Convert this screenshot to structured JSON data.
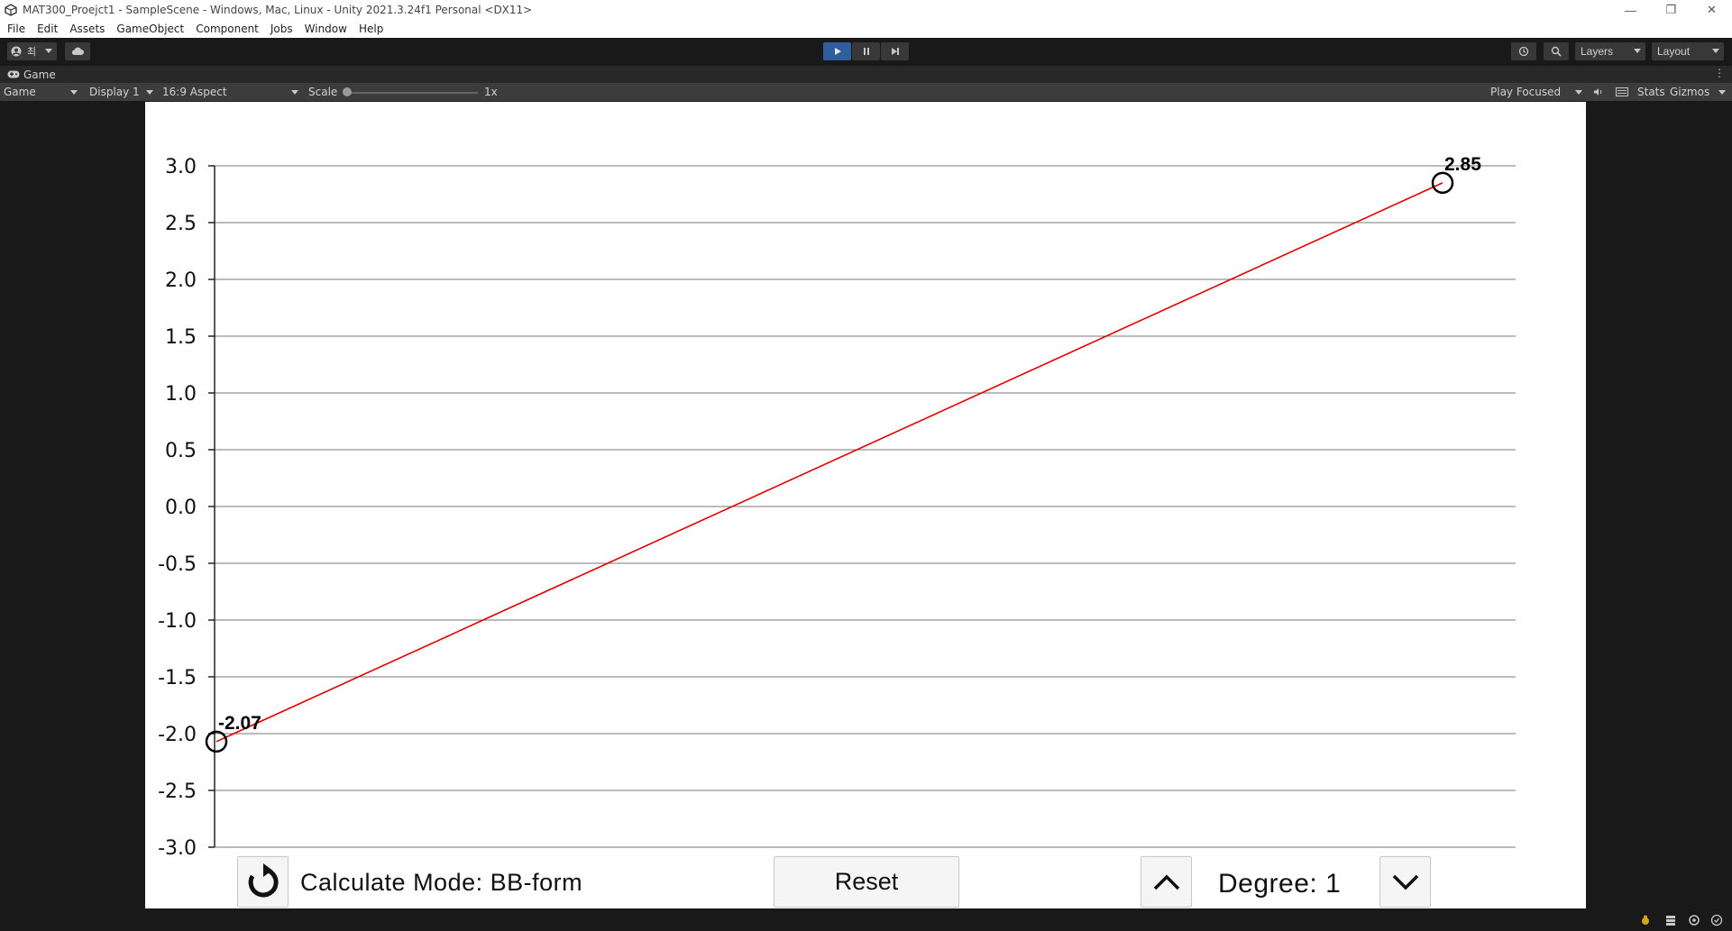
{
  "window": {
    "title": "MAT300_Proejct1 - SampleScene - Windows, Mac, Linux - Unity 2021.3.24f1 Personal <DX11>",
    "controls": {
      "minimize": "—",
      "restore": "❐",
      "close": "✕"
    }
  },
  "menu": [
    "File",
    "Edit",
    "Assets",
    "GameObject",
    "Component",
    "Jobs",
    "Window",
    "Help"
  ],
  "toolbar": {
    "account_label": "최",
    "play_state": "playing",
    "layers_label": "Layers",
    "layout_label": "Layout"
  },
  "game_tab": {
    "label": "Game"
  },
  "game_options": {
    "view": "Game",
    "display": "Display 1",
    "aspect": "16:9 Aspect",
    "scale_label": "Scale",
    "scale_value": "1x",
    "play_mode": "Play Focused",
    "stats": "Stats",
    "gizmos": "Gizmos"
  },
  "chart_data": {
    "type": "line",
    "title": "",
    "xlabel": "",
    "ylabel": "",
    "ylim": [
      -3.0,
      3.0
    ],
    "y_ticks": [
      "3.0",
      "2.5",
      "2.0",
      "1.5",
      "1.0",
      "0.5",
      "0.0",
      "-0.5",
      "-1.0",
      "-1.5",
      "-2.0",
      "-2.5",
      "-3.0"
    ],
    "grid": true,
    "series": [
      {
        "color": "#e00000",
        "x": [
          0,
          1
        ],
        "y": [
          -2.07,
          2.85
        ]
      }
    ],
    "control_points": [
      {
        "x": 0,
        "y": -2.07,
        "label": "-2.07"
      },
      {
        "x": 1,
        "y": 2.85,
        "label": "2.85"
      }
    ]
  },
  "controls": {
    "mode_label": "Calculate Mode: BB-form",
    "reset_label": "Reset",
    "degree_label": "Degree: 1"
  }
}
